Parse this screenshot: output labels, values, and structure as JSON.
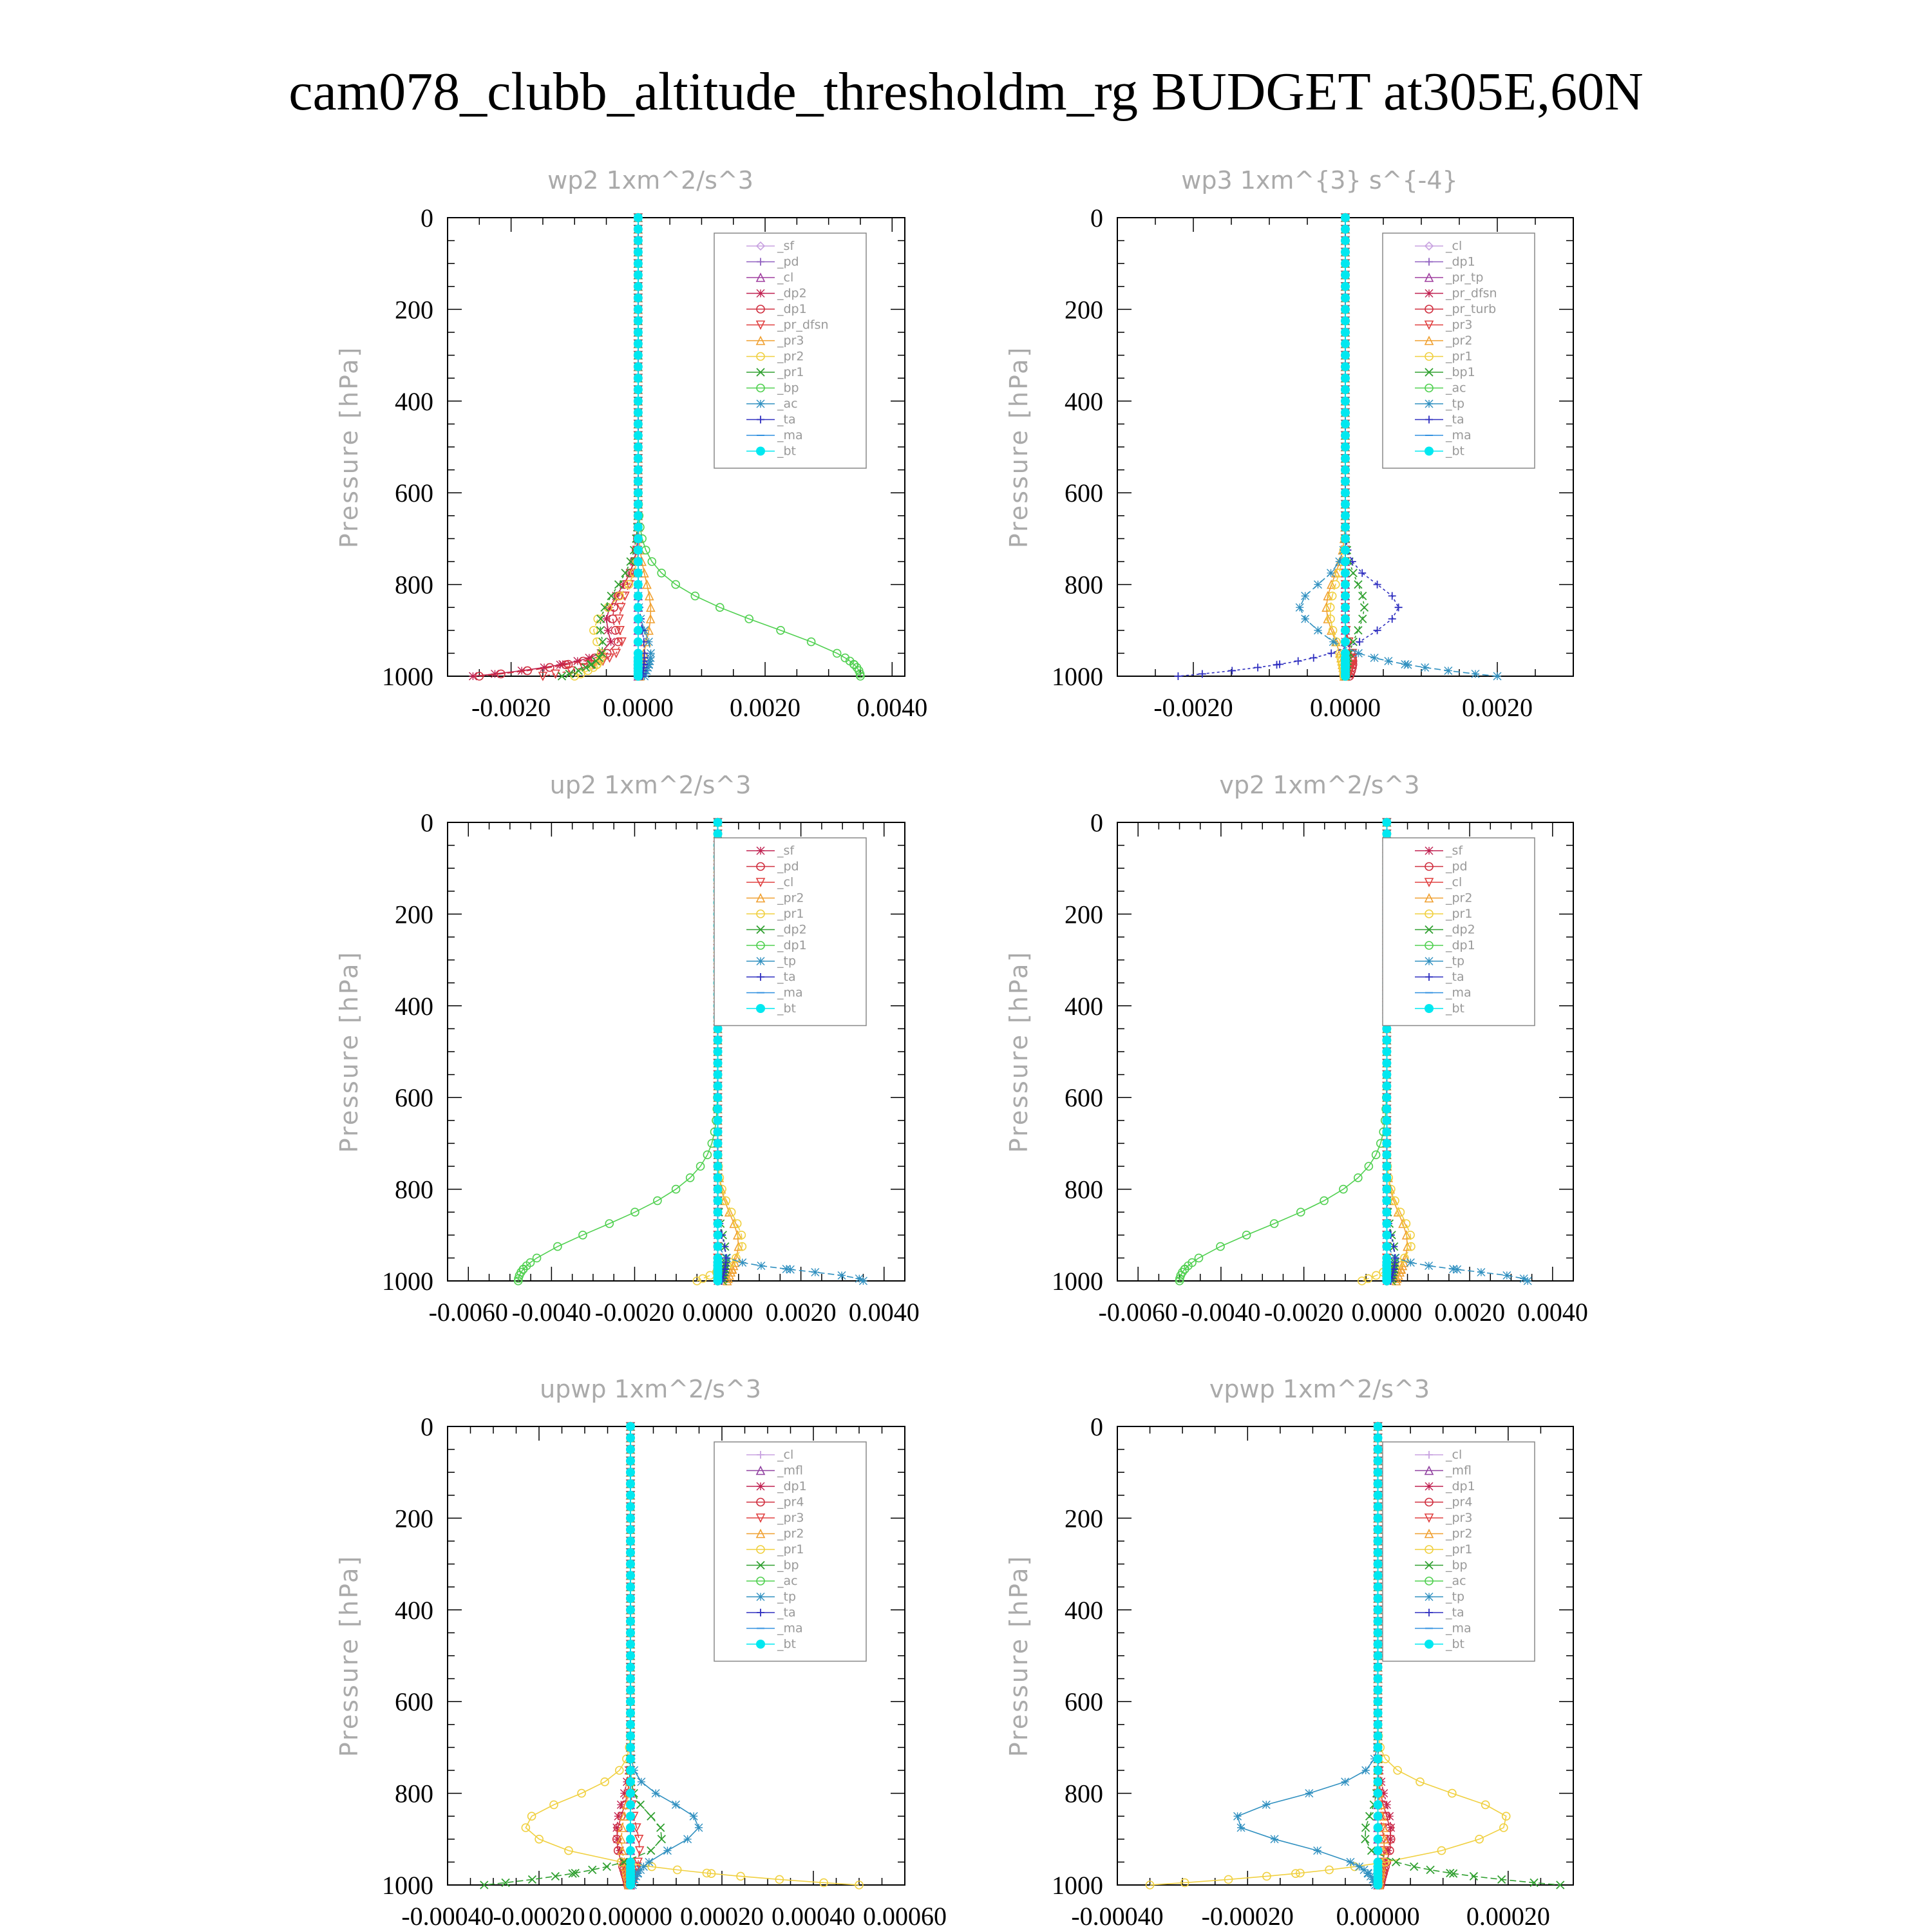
{
  "figure_title": "cam078_clubb_altitude_thresholdm_rg  BUDGET at305E,60N",
  "chart_data": [
    {
      "id": "wp2",
      "type": "line",
      "title": "wp2  1xm^2/s^3",
      "ylabel": "Pressure [hPa]",
      "xlim": [
        -0.003,
        0.0042
      ],
      "ylim": [
        1000,
        0
      ],
      "yreverse": true,
      "xticks": [
        -0.002,
        0.0,
        0.002,
        0.004
      ],
      "xticklabels": [
        "-0.0020",
        "0.0000",
        "0.0020",
        "0.0040"
      ],
      "yticks": [
        0,
        200,
        400,
        600,
        800,
        1000
      ],
      "yticklabels": [
        "0",
        "200",
        "400",
        "600",
        "800",
        "1000"
      ],
      "legend_position": "top-right",
      "grid": false,
      "series": [
        {
          "name": "_sf",
          "color": "#c8a2e0",
          "marker": "diamond",
          "peak": 0.0,
          "center": 850,
          "width": 100
        },
        {
          "name": "_pd",
          "color": "#9060c0",
          "marker": "plus",
          "peak": 0.0,
          "center": 850,
          "width": 100
        },
        {
          "name": "_cl",
          "color": "#a040a0",
          "marker": "triangle",
          "peak": 0.0,
          "center": 850,
          "width": 100
        },
        {
          "name": "_dp2",
          "color": "#c02050",
          "marker": "star",
          "peak": -0.0005,
          "center": 880,
          "width": 90,
          "surface": -0.0026
        },
        {
          "name": "_dp1",
          "color": "#d03040",
          "marker": "circle",
          "peak": -0.0004,
          "center": 870,
          "width": 90,
          "surface": -0.0025
        },
        {
          "name": "_pr_dfsn",
          "color": "#e04040",
          "marker": "triangle-down",
          "peak": -0.0003,
          "center": 880,
          "width": 90,
          "surface": -0.0015
        },
        {
          "name": "_pr3",
          "color": "#f0a030",
          "marker": "triangle",
          "peak": 0.0002,
          "center": 860,
          "width": 100
        },
        {
          "name": "_pr2",
          "color": "#f0d040",
          "marker": "circle",
          "peak": -0.0007,
          "center": 900,
          "width": 80,
          "surface": -0.001
        },
        {
          "name": "_pr1",
          "color": "#30a030",
          "marker": "cross",
          "peak": -0.0006,
          "center": 890,
          "width": 110,
          "surface": -0.0012
        },
        {
          "name": "_bp",
          "color": "#50d050",
          "marker": "circle",
          "peak": 0.0035,
          "center": 1000,
          "width": 150
        },
        {
          "name": "_ac",
          "color": "#3090c0",
          "marker": "star",
          "peak": 0.0002,
          "center": 950,
          "width": 60
        },
        {
          "name": "_ta",
          "color": "#3030c0",
          "marker": "plus",
          "peak": 0.0001,
          "center": 950,
          "width": 80
        },
        {
          "name": "_ma",
          "color": "#3090e0",
          "marker": "dash",
          "peak": 0.0,
          "center": 900,
          "width": 80
        },
        {
          "name": "_bt",
          "color": "#00e8f0",
          "marker": "dot",
          "peak": 0.0,
          "center": 900,
          "width": 80
        }
      ]
    },
    {
      "id": "wp3",
      "type": "line",
      "title": "wp3  1xm^{3} s^{-4}",
      "ylabel": "Pressure [hPa]",
      "xlim": [
        -0.003,
        0.003
      ],
      "ylim": [
        1000,
        0
      ],
      "yreverse": true,
      "xticks": [
        -0.002,
        0.0,
        0.002
      ],
      "xticklabels": [
        "-0.0020",
        "0.0000",
        "0.0020"
      ],
      "yticks": [
        0,
        200,
        400,
        600,
        800,
        1000
      ],
      "yticklabels": [
        "0",
        "200",
        "400",
        "600",
        "800",
        "1000"
      ],
      "legend_position": "top-right",
      "grid": false,
      "series": [
        {
          "name": "_cl",
          "color": "#c8a2e0",
          "marker": "diamond",
          "peak": 0.0,
          "center": 850,
          "width": 100
        },
        {
          "name": "_dp1",
          "color": "#9060c0",
          "marker": "plus",
          "peak": 0.0,
          "center": 850,
          "width": 100
        },
        {
          "name": "_pr_tp",
          "color": "#a040a0",
          "marker": "triangle",
          "peak": 0.0,
          "center": 850,
          "width": 100
        },
        {
          "name": "_pr_dfsn",
          "color": "#c02050",
          "marker": "star",
          "peak": 0.0,
          "center": 850,
          "width": 100
        },
        {
          "name": "_pr_turb",
          "color": "#d03040",
          "marker": "circle",
          "peak": 0.0001,
          "center": 970,
          "width": 40
        },
        {
          "name": "_pr3",
          "color": "#e04040",
          "marker": "triangle-down",
          "peak": 0.0001,
          "center": 960,
          "width": 40
        },
        {
          "name": "_pr2",
          "color": "#f0a030",
          "marker": "triangle",
          "peak": -0.00025,
          "center": 850,
          "width": 90
        },
        {
          "name": "_pr1",
          "color": "#f0d040",
          "marker": "circle",
          "peak": -0.0002,
          "center": 860,
          "width": 90
        },
        {
          "name": "_bp1",
          "color": "#30a030",
          "marker": "cross",
          "peak": 0.00025,
          "center": 850,
          "width": 80
        },
        {
          "name": "_ac",
          "color": "#50d050",
          "marker": "circle",
          "peak": 0.0,
          "center": 850,
          "width": 80
        },
        {
          "name": "_tp",
          "color": "#3090c0",
          "marker": "star",
          "peak": -0.0006,
          "center": 850,
          "width": 70,
          "surface": 0.002
        },
        {
          "name": "_ta",
          "color": "#3030c0",
          "marker": "plus",
          "peak": 0.0007,
          "center": 850,
          "width": 70,
          "surface": -0.0022
        },
        {
          "name": "_ma",
          "color": "#3090e0",
          "marker": "dash",
          "peak": 0.0,
          "center": 850,
          "width": 80
        },
        {
          "name": "_bt",
          "color": "#00e8f0",
          "marker": "dot",
          "peak": 0.0,
          "center": 850,
          "width": 80
        }
      ]
    },
    {
      "id": "up2",
      "type": "line",
      "title": "up2  1xm^2/s^3",
      "ylabel": "Pressure [hPa]",
      "xlim": [
        -0.0065,
        0.0045
      ],
      "ylim": [
        1000,
        0
      ],
      "yreverse": true,
      "xticks": [
        -0.006,
        -0.004,
        -0.002,
        0.0,
        0.002,
        0.004
      ],
      "xticklabels": [
        "-0.0060",
        "-0.0040",
        "-0.0020",
        "0.0000",
        "0.0020",
        "0.0040"
      ],
      "yticks": [
        0,
        200,
        400,
        600,
        800,
        1000
      ],
      "yticklabels": [
        "0",
        "200",
        "400",
        "600",
        "800",
        "1000"
      ],
      "legend_position": "top-right",
      "grid": false,
      "series": [
        {
          "name": "_sf",
          "color": "#c02050",
          "marker": "star",
          "peak": 0.0,
          "center": 900,
          "width": 80
        },
        {
          "name": "_pd",
          "color": "#d03040",
          "marker": "circle",
          "peak": 0.0,
          "center": 900,
          "width": 80
        },
        {
          "name": "_cl",
          "color": "#e04040",
          "marker": "triangle-down",
          "peak": 0.0,
          "center": 900,
          "width": 80
        },
        {
          "name": "_pr2",
          "color": "#f0a030",
          "marker": "triangle",
          "peak": 0.0005,
          "center": 920,
          "width": 90
        },
        {
          "name": "_pr1",
          "color": "#f0d040",
          "marker": "circle",
          "peak": 0.0006,
          "center": 920,
          "width": 90,
          "surface": -0.0005
        },
        {
          "name": "_dp2",
          "color": "#30a030",
          "marker": "cross",
          "peak": 0.0002,
          "center": 950,
          "width": 70
        },
        {
          "name": "_dp1",
          "color": "#50d050",
          "marker": "circle",
          "peak": -0.0048,
          "center": 1000,
          "width": 160
        },
        {
          "name": "_tp",
          "color": "#3090c0",
          "marker": "star",
          "peak": 0.0035,
          "center": 1000,
          "width": 30
        },
        {
          "name": "_ta",
          "color": "#3030c0",
          "marker": "plus",
          "peak": 0.0002,
          "center": 950,
          "width": 60
        },
        {
          "name": "_ma",
          "color": "#3090e0",
          "marker": "dash",
          "peak": 0.0,
          "center": 900,
          "width": 80
        },
        {
          "name": "_bt",
          "color": "#00e8f0",
          "marker": "dot",
          "peak": 0.0,
          "center": 900,
          "width": 80
        }
      ]
    },
    {
      "id": "vp2",
      "type": "line",
      "title": "vp2  1xm^2/s^3",
      "ylabel": "Pressure [hPa]",
      "xlim": [
        -0.0065,
        0.0045
      ],
      "ylim": [
        1000,
        0
      ],
      "yreverse": true,
      "xticks": [
        -0.006,
        -0.004,
        -0.002,
        0.0,
        0.002,
        0.004
      ],
      "xticklabels": [
        "-0.0060",
        "-0.0040",
        "-0.0020",
        "0.0000",
        "0.0020",
        "0.0040"
      ],
      "yticks": [
        0,
        200,
        400,
        600,
        800,
        1000
      ],
      "yticklabels": [
        "0",
        "200",
        "400",
        "600",
        "800",
        "1000"
      ],
      "legend_position": "top-right",
      "grid": false,
      "series": [
        {
          "name": "_sf",
          "color": "#c02050",
          "marker": "star",
          "peak": 0.0,
          "center": 900,
          "width": 80
        },
        {
          "name": "_pd",
          "color": "#d03040",
          "marker": "circle",
          "peak": 0.0,
          "center": 900,
          "width": 80
        },
        {
          "name": "_cl",
          "color": "#e04040",
          "marker": "triangle-down",
          "peak": 0.0,
          "center": 900,
          "width": 80
        },
        {
          "name": "_pr2",
          "color": "#f0a030",
          "marker": "triangle",
          "peak": 0.0005,
          "center": 920,
          "width": 90
        },
        {
          "name": "_pr1",
          "color": "#f0d040",
          "marker": "circle",
          "peak": 0.0006,
          "center": 920,
          "width": 90,
          "surface": -0.0006
        },
        {
          "name": "_dp2",
          "color": "#30a030",
          "marker": "cross",
          "peak": 0.0002,
          "center": 950,
          "width": 70
        },
        {
          "name": "_dp1",
          "color": "#50d050",
          "marker": "circle",
          "peak": -0.005,
          "center": 1000,
          "width": 160
        },
        {
          "name": "_tp",
          "color": "#3090c0",
          "marker": "star",
          "peak": 0.0034,
          "center": 1000,
          "width": 30
        },
        {
          "name": "_ta",
          "color": "#3030c0",
          "marker": "plus",
          "peak": 0.0002,
          "center": 950,
          "width": 60
        },
        {
          "name": "_ma",
          "color": "#3090e0",
          "marker": "dash",
          "peak": 0.0,
          "center": 900,
          "width": 80
        },
        {
          "name": "_bt",
          "color": "#00e8f0",
          "marker": "dot",
          "peak": 0.0,
          "center": 900,
          "width": 80
        }
      ]
    },
    {
      "id": "upwp",
      "type": "line",
      "title": "upwp  1xm^2/s^3",
      "ylabel": "Pressure [hPa]",
      "xlim": [
        -0.0004,
        0.0006
      ],
      "ylim": [
        1000,
        0
      ],
      "yreverse": true,
      "xticks": [
        -0.0004,
        -0.0002,
        0.0,
        0.0002,
        0.0004,
        0.0006
      ],
      "xticklabels": [
        "-0.00040",
        "-0.00020",
        "0.00000",
        "0.00020",
        "0.00040",
        "0.00060"
      ],
      "yticks": [
        0,
        200,
        400,
        600,
        800,
        1000
      ],
      "yticklabels": [
        "0",
        "200",
        "400",
        "600",
        "800",
        "1000"
      ],
      "legend_position": "top-right",
      "grid": false,
      "series": [
        {
          "name": "_cl",
          "color": "#c8a2e0",
          "marker": "plus",
          "peak": 0.0,
          "center": 850,
          "width": 100
        },
        {
          "name": "_mfl",
          "color": "#9040a0",
          "marker": "triangle",
          "peak": 0.0,
          "center": 850,
          "width": 100
        },
        {
          "name": "_dp1",
          "color": "#c02050",
          "marker": "star",
          "peak": -3e-05,
          "center": 880,
          "width": 90
        },
        {
          "name": "_pr4",
          "color": "#d03040",
          "marker": "circle",
          "peak": -3e-05,
          "center": 900,
          "width": 80
        },
        {
          "name": "_pr3",
          "color": "#e04040",
          "marker": "triangle-down",
          "peak": 2e-05,
          "center": 920,
          "width": 70
        },
        {
          "name": "_pr2",
          "color": "#f0a030",
          "marker": "triangle",
          "peak": -2e-05,
          "center": 900,
          "width": 80
        },
        {
          "name": "_pr1",
          "color": "#f0d040",
          "marker": "circle",
          "peak": -0.00023,
          "center": 870,
          "width": 80,
          "surface": 0.0005
        },
        {
          "name": "_bp",
          "color": "#30a030",
          "marker": "cross",
          "peak": 7e-05,
          "center": 890,
          "width": 60,
          "surface": -0.00032
        },
        {
          "name": "_ac",
          "color": "#50d050",
          "marker": "circle",
          "peak": 0.0,
          "center": 900,
          "width": 80
        },
        {
          "name": "_tp",
          "color": "#3090c0",
          "marker": "star",
          "peak": 0.00015,
          "center": 870,
          "width": 70
        },
        {
          "name": "_ta",
          "color": "#3030c0",
          "marker": "plus",
          "peak": 0.0,
          "center": 900,
          "width": 80
        },
        {
          "name": "_ma",
          "color": "#3090e0",
          "marker": "dash",
          "peak": 0.0,
          "center": 900,
          "width": 80
        },
        {
          "name": "_bt",
          "color": "#00e8f0",
          "marker": "dot",
          "peak": 0.0,
          "center": 900,
          "width": 80
        }
      ]
    },
    {
      "id": "vpwp",
      "type": "line",
      "title": "vpwp  1xm^2/s^3",
      "ylabel": "Pressure [hPa]",
      "xlim": [
        -0.0004,
        0.0003
      ],
      "ylim": [
        1000,
        0
      ],
      "yreverse": true,
      "xticks": [
        -0.0004,
        -0.0002,
        0.0,
        0.0002
      ],
      "xticklabels": [
        "-0.00040",
        "-0.00020",
        "0.00000",
        "0.00020"
      ],
      "yticks": [
        0,
        200,
        400,
        600,
        800,
        1000
      ],
      "yticklabels": [
        "0",
        "200",
        "400",
        "600",
        "800",
        "1000"
      ],
      "legend_position": "top-right",
      "grid": false,
      "series": [
        {
          "name": "_cl",
          "color": "#c8a2e0",
          "marker": "plus",
          "peak": 0.0,
          "center": 850,
          "width": 100
        },
        {
          "name": "_mfl",
          "color": "#9040a0",
          "marker": "triangle",
          "peak": 0.0,
          "center": 850,
          "width": 100
        },
        {
          "name": "_dp1",
          "color": "#c02050",
          "marker": "star",
          "peak": 2e-05,
          "center": 880,
          "width": 90
        },
        {
          "name": "_pr4",
          "color": "#d03040",
          "marker": "circle",
          "peak": 2e-05,
          "center": 900,
          "width": 80
        },
        {
          "name": "_pr3",
          "color": "#e04040",
          "marker": "triangle-down",
          "peak": 1e-05,
          "center": 920,
          "width": 70
        },
        {
          "name": "_pr2",
          "color": "#f0a030",
          "marker": "triangle",
          "peak": 1e-05,
          "center": 900,
          "width": 80
        },
        {
          "name": "_pr1",
          "color": "#f0d040",
          "marker": "circle",
          "peak": 0.0002,
          "center": 860,
          "width": 80,
          "surface": -0.00035
        },
        {
          "name": "_bp",
          "color": "#30a030",
          "marker": "cross",
          "peak": -2e-05,
          "center": 890,
          "width": 60,
          "surface": 0.00028
        },
        {
          "name": "_ac",
          "color": "#50d050",
          "marker": "circle",
          "peak": 0.0,
          "center": 900,
          "width": 80
        },
        {
          "name": "_tp",
          "color": "#3090c0",
          "marker": "star",
          "peak": -0.00022,
          "center": 860,
          "width": 70
        },
        {
          "name": "_ta",
          "color": "#3030c0",
          "marker": "plus",
          "peak": 0.0,
          "center": 900,
          "width": 80
        },
        {
          "name": "_ma",
          "color": "#3090e0",
          "marker": "dash",
          "peak": 0.0,
          "center": 900,
          "width": 80
        },
        {
          "name": "_bt",
          "color": "#00e8f0",
          "marker": "dot",
          "peak": 0.0,
          "center": 900,
          "width": 80
        }
      ]
    }
  ]
}
